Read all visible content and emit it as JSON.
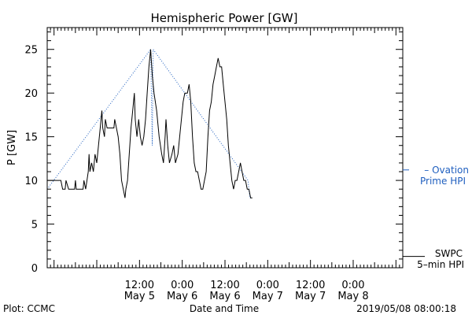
{
  "chart_data": {
    "type": "line",
    "title": "Hemispheric Power [GW]",
    "xlabel": "Date and Time",
    "ylabel": "P [GW]",
    "ylim": [
      0,
      27.5
    ],
    "xlim": [
      -0.58,
      3.58
    ],
    "x_units": "days since 2019-05-05 00:00 UT (tick labels shown as time / date)",
    "yticks": [
      0,
      5,
      10,
      15,
      20,
      25
    ],
    "xticks": [
      {
        "x": 0.5,
        "time": "12:00",
        "date": "May 5"
      },
      {
        "x": 1.0,
        "time": "0:00",
        "date": "May 6"
      },
      {
        "x": 1.5,
        "time": "12:00",
        "date": "May 6"
      },
      {
        "x": 2.0,
        "time": "0:00",
        "date": "May 7"
      },
      {
        "x": 2.5,
        "time": "12:00",
        "date": "May 7"
      },
      {
        "x": 3.0,
        "time": "0:00",
        "date": "May 8"
      }
    ],
    "series": [
      {
        "name": "SWPC 5-min HPI",
        "label_line1": "SWPC",
        "label_line2": "5–min HPI",
        "color": "#000000",
        "style": "solid",
        "points": [
          [
            -0.58,
            10
          ],
          [
            -0.42,
            10
          ],
          [
            -0.4,
            9
          ],
          [
            -0.37,
            9
          ],
          [
            -0.36,
            10
          ],
          [
            -0.33,
            9
          ],
          [
            -0.26,
            9
          ],
          [
            -0.25,
            10
          ],
          [
            -0.24,
            9
          ],
          [
            -0.16,
            9
          ],
          [
            -0.15,
            10
          ],
          [
            -0.13,
            9
          ],
          [
            -0.1,
            11
          ],
          [
            -0.09,
            13
          ],
          [
            -0.08,
            11
          ],
          [
            -0.06,
            12
          ],
          [
            -0.04,
            11
          ],
          [
            -0.02,
            13
          ],
          [
            0.0,
            12
          ],
          [
            0.02,
            14
          ],
          [
            0.04,
            16
          ],
          [
            0.06,
            18
          ],
          [
            0.07,
            16
          ],
          [
            0.09,
            15
          ],
          [
            0.1,
            17
          ],
          [
            0.12,
            16
          ],
          [
            0.2,
            16
          ],
          [
            0.21,
            17
          ],
          [
            0.23,
            16
          ],
          [
            0.25,
            15
          ],
          [
            0.27,
            13
          ],
          [
            0.29,
            10
          ],
          [
            0.31,
            9
          ],
          [
            0.33,
            8
          ],
          [
            0.34,
            9
          ],
          [
            0.36,
            10
          ],
          [
            0.38,
            13
          ],
          [
            0.4,
            16
          ],
          [
            0.42,
            18
          ],
          [
            0.44,
            20
          ],
          [
            0.45,
            17
          ],
          [
            0.47,
            15
          ],
          [
            0.49,
            17
          ],
          [
            0.51,
            15
          ],
          [
            0.53,
            14
          ],
          [
            0.55,
            15
          ],
          [
            0.57,
            17
          ],
          [
            0.59,
            20
          ],
          [
            0.61,
            23
          ],
          [
            0.63,
            25
          ],
          [
            0.65,
            22
          ],
          [
            0.67,
            20
          ],
          [
            0.7,
            18
          ],
          [
            0.73,
            15
          ],
          [
            0.76,
            13
          ],
          [
            0.78,
            12
          ],
          [
            0.8,
            15
          ],
          [
            0.81,
            17
          ],
          [
            0.83,
            14
          ],
          [
            0.85,
            12
          ],
          [
            0.88,
            13
          ],
          [
            0.9,
            14
          ],
          [
            0.92,
            12
          ],
          [
            0.95,
            13
          ],
          [
            0.97,
            15
          ],
          [
            0.99,
            17
          ],
          [
            1.01,
            19
          ],
          [
            1.03,
            20
          ],
          [
            1.06,
            20
          ],
          [
            1.08,
            21
          ],
          [
            1.1,
            19
          ],
          [
            1.12,
            15
          ],
          [
            1.14,
            12
          ],
          [
            1.16,
            11
          ],
          [
            1.18,
            11
          ],
          [
            1.2,
            10
          ],
          [
            1.22,
            9
          ],
          [
            1.24,
            9
          ],
          [
            1.26,
            10
          ],
          [
            1.28,
            11
          ],
          [
            1.3,
            15
          ],
          [
            1.32,
            18
          ],
          [
            1.34,
            19
          ],
          [
            1.36,
            21
          ],
          [
            1.38,
            22
          ],
          [
            1.4,
            23
          ],
          [
            1.42,
            24
          ],
          [
            1.44,
            23
          ],
          [
            1.46,
            23
          ],
          [
            1.48,
            21
          ],
          [
            1.5,
            19
          ],
          [
            1.52,
            17
          ],
          [
            1.54,
            14
          ],
          [
            1.56,
            12
          ],
          [
            1.58,
            10
          ],
          [
            1.6,
            9
          ],
          [
            1.62,
            10
          ],
          [
            1.64,
            10
          ],
          [
            1.66,
            11
          ],
          [
            1.68,
            12
          ],
          [
            1.7,
            11
          ],
          [
            1.72,
            10
          ],
          [
            1.74,
            10
          ],
          [
            1.76,
            9
          ],
          [
            1.78,
            9
          ],
          [
            1.8,
            8
          ],
          [
            1.82,
            8
          ]
        ]
      },
      {
        "name": "Ovation Prime HPI",
        "label_line1": "– Ovation",
        "label_line2": "Prime HPI",
        "color": "#1f5fbf",
        "style": "dotted",
        "points": [
          [
            -0.58,
            9
          ],
          [
            0.63,
            25
          ],
          [
            0.65,
            14
          ],
          [
            0.66,
            25
          ],
          [
            1.77,
            10
          ],
          [
            1.79,
            8
          ],
          [
            1.82,
            8
          ]
        ]
      }
    ]
  },
  "footer": {
    "left": "Plot: CCMC",
    "right": "2019/05/08 08:00:18"
  }
}
